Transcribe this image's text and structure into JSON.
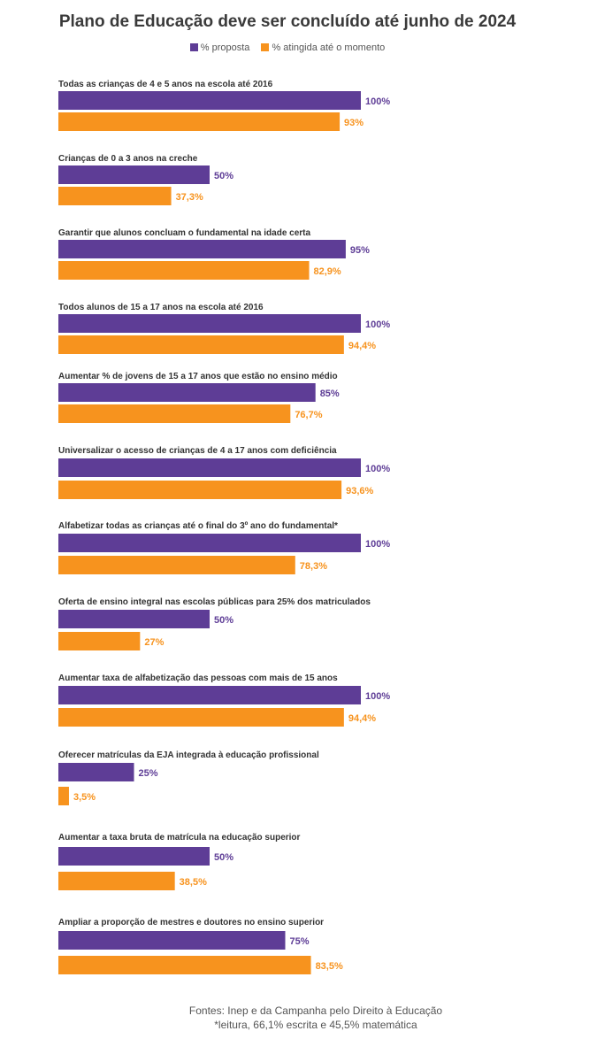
{
  "chart_data": {
    "type": "bar",
    "orientation": "horizontal",
    "title": "Plano de Educação deve ser concluído até junho de 2024",
    "legend_position": "top-center",
    "grid": false,
    "xlim": [
      0,
      100
    ],
    "categories": [
      "Todas as crianças de 4 e 5 anos na escola até 2016",
      "Crianças de 0 a 3 anos na creche",
      "Garantir que alunos concluam o fundamental na idade certa",
      "Todos alunos de 15 a 17 anos na escola até 2016",
      "Aumentar % de jovens de 15 a 17 anos que estão no ensino médio",
      "Universalizar o acesso de crianças de 4 a 17 anos com deficiência",
      "Alfabetizar todas as crianças até o final do 3º ano do fundamental*",
      "Oferta de ensino integral nas escolas públicas para 25% dos matriculados",
      "Aumentar taxa de alfabetização das pessoas com mais de 15 anos",
      "Oferecer matrículas da EJA integrada à educação profissional",
      "Aumentar a taxa bruta de matrícula na educação superior",
      "Ampliar a proporção de mestres e doutores no ensino superior"
    ],
    "series": [
      {
        "name": "% proposta",
        "color": "#5e3d96",
        "values": [
          100,
          50,
          95,
          100,
          85,
          100,
          100,
          50,
          100,
          25,
          50,
          75
        ],
        "labels": [
          "100%",
          "50%",
          "95%",
          "100%",
          "85%",
          "100%",
          "100%",
          "50%",
          "100%",
          "25%",
          "50%",
          "75%"
        ]
      },
      {
        "name": "% atingida até o momento",
        "color": "#f7931e",
        "values": [
          93,
          37.3,
          82.9,
          94.4,
          76.7,
          93.6,
          78.3,
          27,
          94.4,
          3.5,
          38.5,
          83.5
        ],
        "labels": [
          "93%",
          "37,3%",
          "82,9%",
          "94,4%",
          "76,7%",
          "93,6%",
          "78,3%",
          "27%",
          "94,4%",
          "3,5%",
          "38,5%",
          "83,5%"
        ]
      }
    ]
  },
  "footer": {
    "source": "Fontes: Inep e da Campanha pelo Direito à Educação",
    "note": "*leitura, 66,1% escrita e 45,5% matemática"
  }
}
